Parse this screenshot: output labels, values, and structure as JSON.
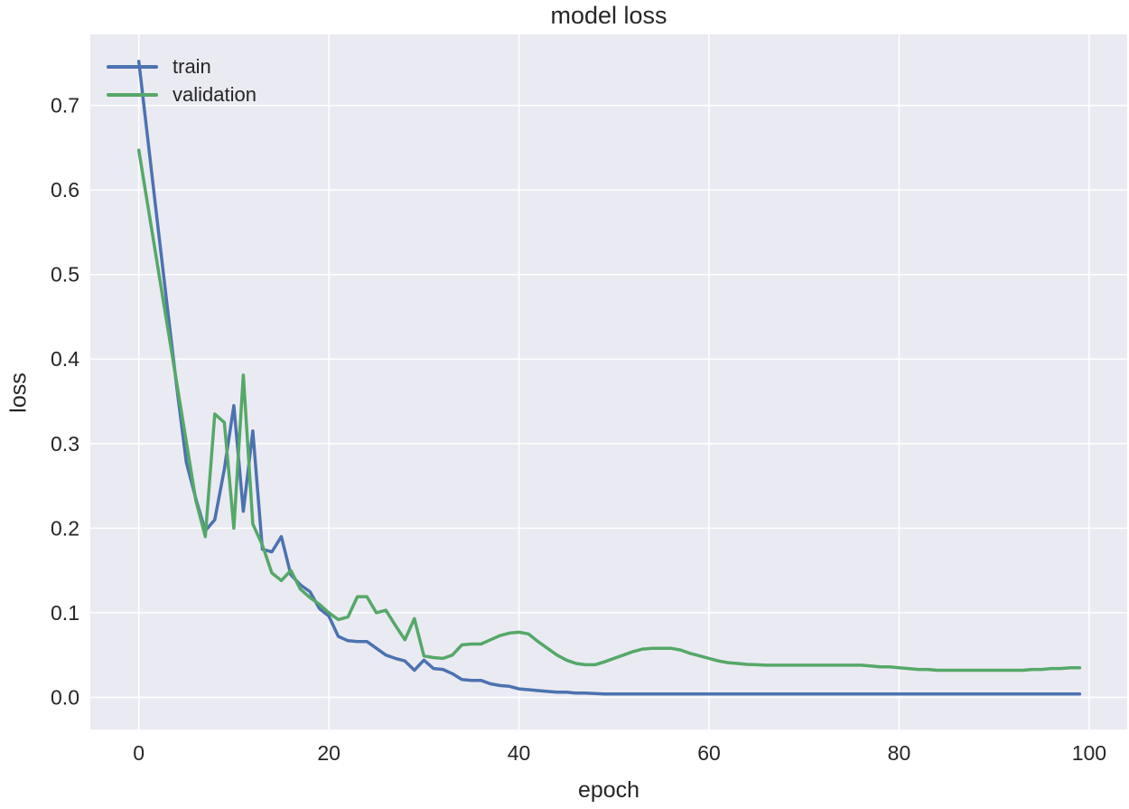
{
  "colors": {
    "plot_background": "#EAEAF2",
    "gridline": "#FFFFFF",
    "text": "#262626",
    "train": "#4C72B0",
    "validation": "#55A868"
  },
  "chart_data": {
    "type": "line",
    "title": "model loss",
    "xlabel": "epoch",
    "ylabel": "loss",
    "x_note": "x value = array index = epoch, 0 through 99",
    "xlim": [
      -5.1,
      104.0
    ],
    "ylim": [
      -0.038,
      0.784
    ],
    "grid": true,
    "legend_position": "upper left",
    "xticks": [
      0,
      20,
      40,
      60,
      80,
      100
    ],
    "xtick_labels": [
      "0",
      "20",
      "40",
      "60",
      "80",
      "100"
    ],
    "yticks": [
      0.0,
      0.1,
      0.2,
      0.3,
      0.4,
      0.5,
      0.6,
      0.7
    ],
    "ytick_labels": [
      "0.0",
      "0.1",
      "0.2",
      "0.3",
      "0.4",
      "0.5",
      "0.6",
      "0.7"
    ],
    "series": [
      {
        "name": "train",
        "color": "#4C72B0",
        "values": [
          0.752,
          0.655,
          0.558,
          0.462,
          0.366,
          0.278,
          0.235,
          0.197,
          0.21,
          0.27,
          0.345,
          0.22,
          0.315,
          0.175,
          0.172,
          0.19,
          0.145,
          0.133,
          0.125,
          0.105,
          0.096,
          0.072,
          0.067,
          0.066,
          0.066,
          0.058,
          0.05,
          0.046,
          0.043,
          0.032,
          0.044,
          0.034,
          0.033,
          0.028,
          0.021,
          0.02,
          0.02,
          0.016,
          0.014,
          0.013,
          0.01,
          0.009,
          0.008,
          0.007,
          0.006,
          0.006,
          0.005,
          0.005,
          0.0045,
          0.004,
          0.004,
          0.004,
          0.004,
          0.004,
          0.004,
          0.004,
          0.004,
          0.004,
          0.004,
          0.004,
          0.004,
          0.004,
          0.004,
          0.004,
          0.004,
          0.004,
          0.004,
          0.004,
          0.004,
          0.004,
          0.004,
          0.004,
          0.004,
          0.004,
          0.004,
          0.004,
          0.004,
          0.004,
          0.004,
          0.004,
          0.004,
          0.004,
          0.004,
          0.004,
          0.004,
          0.004,
          0.004,
          0.004,
          0.004,
          0.004,
          0.004,
          0.004,
          0.004,
          0.004,
          0.004,
          0.004,
          0.004,
          0.004,
          0.004,
          0.004
        ]
      },
      {
        "name": "validation",
        "color": "#55A868",
        "values": [
          0.647,
          0.578,
          0.509,
          0.44,
          0.371,
          0.302,
          0.233,
          0.19,
          0.335,
          0.325,
          0.2,
          0.381,
          0.205,
          0.18,
          0.147,
          0.138,
          0.15,
          0.128,
          0.118,
          0.11,
          0.1,
          0.092,
          0.095,
          0.119,
          0.119,
          0.1,
          0.103,
          0.085,
          0.068,
          0.093,
          0.049,
          0.047,
          0.046,
          0.05,
          0.062,
          0.063,
          0.063,
          0.068,
          0.073,
          0.076,
          0.077,
          0.075,
          0.066,
          0.058,
          0.05,
          0.044,
          0.04,
          0.0385,
          0.0385,
          0.042,
          0.046,
          0.05,
          0.054,
          0.057,
          0.058,
          0.058,
          0.058,
          0.056,
          0.052,
          0.049,
          0.046,
          0.043,
          0.041,
          0.04,
          0.039,
          0.0385,
          0.038,
          0.038,
          0.038,
          0.038,
          0.038,
          0.038,
          0.038,
          0.038,
          0.038,
          0.038,
          0.038,
          0.037,
          0.036,
          0.036,
          0.035,
          0.034,
          0.033,
          0.033,
          0.032,
          0.032,
          0.032,
          0.032,
          0.032,
          0.032,
          0.032,
          0.032,
          0.032,
          0.032,
          0.033,
          0.033,
          0.034,
          0.034,
          0.035,
          0.035
        ]
      }
    ]
  }
}
